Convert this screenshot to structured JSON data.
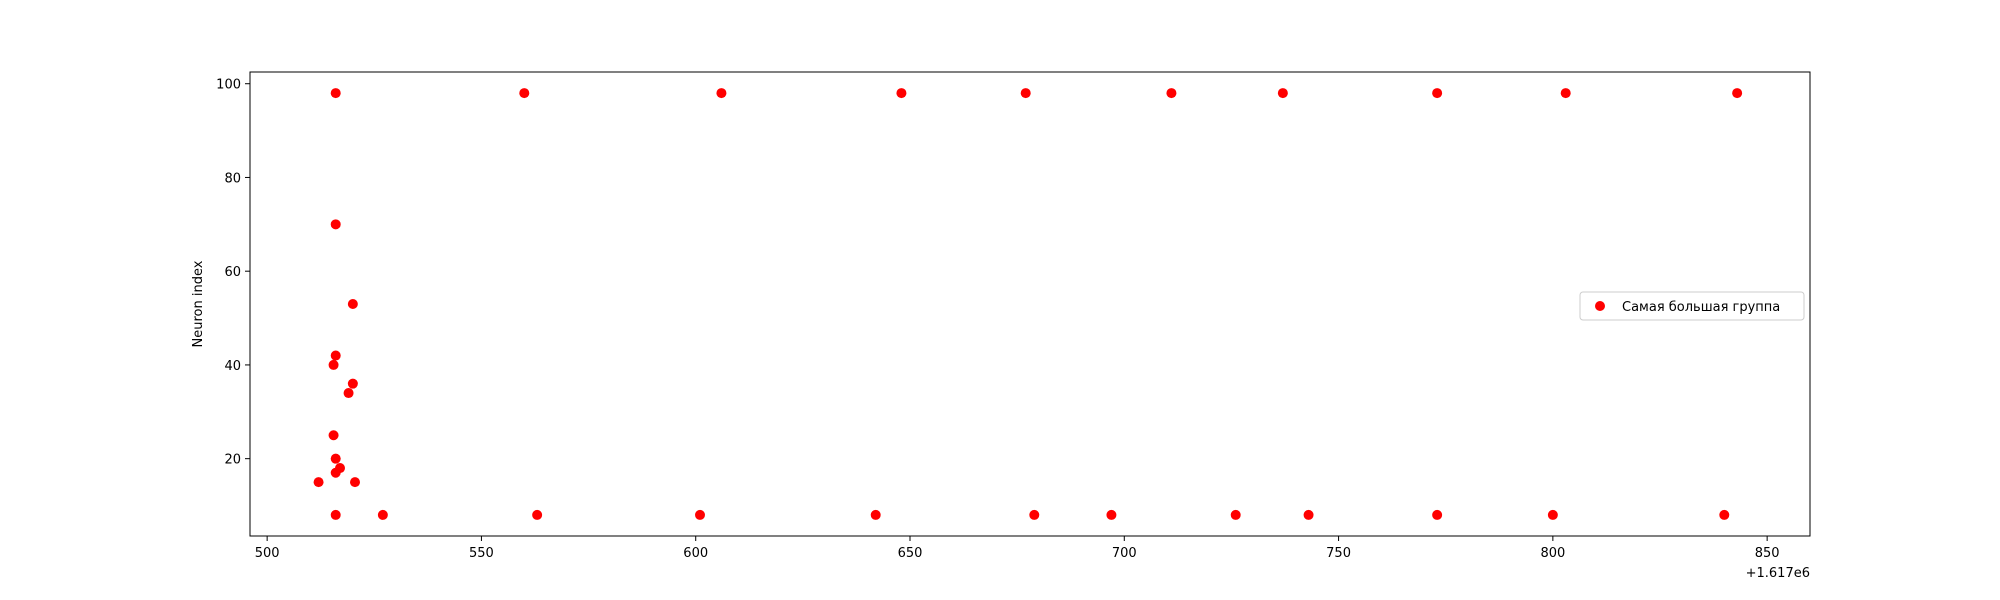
{
  "chart_data": {
    "type": "scatter",
    "title": "",
    "xlabel": "",
    "ylabel": "Neuron index",
    "x_offset_text": "+1.617e6",
    "xlim": [
      496,
      860
    ],
    "ylim": [
      3.5,
      102.5
    ],
    "xticks": [
      500,
      550,
      600,
      650,
      700,
      750,
      800,
      850
    ],
    "yticks": [
      20,
      40,
      60,
      80,
      100
    ],
    "grid": false,
    "legend_position": "center-right",
    "series": [
      {
        "name": "Самая большая группа",
        "color": "#ff0000",
        "points": [
          {
            "x": 516,
            "y": 98
          },
          {
            "x": 560,
            "y": 98
          },
          {
            "x": 606,
            "y": 98
          },
          {
            "x": 648,
            "y": 98
          },
          {
            "x": 677,
            "y": 98
          },
          {
            "x": 711,
            "y": 98
          },
          {
            "x": 737,
            "y": 98
          },
          {
            "x": 773,
            "y": 98
          },
          {
            "x": 803,
            "y": 98
          },
          {
            "x": 843,
            "y": 98
          },
          {
            "x": 516,
            "y": 70
          },
          {
            "x": 520,
            "y": 53
          },
          {
            "x": 516,
            "y": 42
          },
          {
            "x": 515.5,
            "y": 40
          },
          {
            "x": 520,
            "y": 36
          },
          {
            "x": 519,
            "y": 34
          },
          {
            "x": 515.5,
            "y": 25
          },
          {
            "x": 516,
            "y": 20
          },
          {
            "x": 517,
            "y": 18
          },
          {
            "x": 516,
            "y": 17
          },
          {
            "x": 512,
            "y": 15
          },
          {
            "x": 520.5,
            "y": 15
          },
          {
            "x": 516,
            "y": 8
          },
          {
            "x": 527,
            "y": 8
          },
          {
            "x": 563,
            "y": 8
          },
          {
            "x": 601,
            "y": 8
          },
          {
            "x": 642,
            "y": 8
          },
          {
            "x": 679,
            "y": 8
          },
          {
            "x": 697,
            "y": 8
          },
          {
            "x": 726,
            "y": 8
          },
          {
            "x": 743,
            "y": 8
          },
          {
            "x": 773,
            "y": 8
          },
          {
            "x": 800,
            "y": 8
          },
          {
            "x": 840,
            "y": 8
          }
        ]
      }
    ]
  }
}
